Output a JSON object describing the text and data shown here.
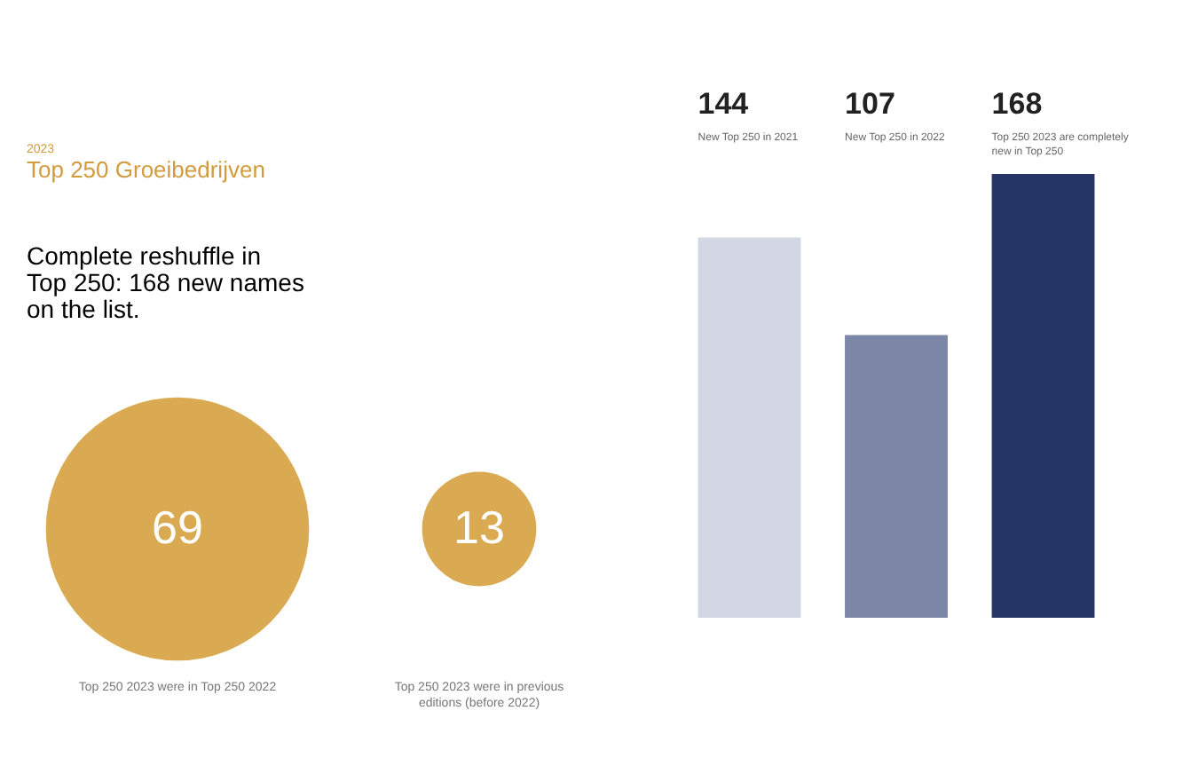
{
  "chart_data": [
    {
      "type": "other",
      "title": "Top 250 Groeibedrijven",
      "subtitle": "Complete reshuffle in Top 250: 168 new names on the list.",
      "annotations": [
        "2023"
      ],
      "categories": [
        "Top 250 2023 were in Top 250 2022",
        "Top 250 2023 were in previous editions (before 2022)"
      ],
      "values": [
        69,
        13
      ],
      "colors": [
        "#d9aa52",
        "#d9aa52"
      ],
      "data_labels": true
    },
    {
      "type": "bar",
      "categories": [
        "New Top 250 in 2021",
        "New Top 250 in 2022",
        "Top 250 2023 are completely new in Top 250"
      ],
      "values": [
        144,
        107,
        168
      ],
      "colors": [
        "#d3d7e3",
        "#7c86a7",
        "#253565"
      ],
      "data_labels": true,
      "tick_labels": false
    }
  ]
}
